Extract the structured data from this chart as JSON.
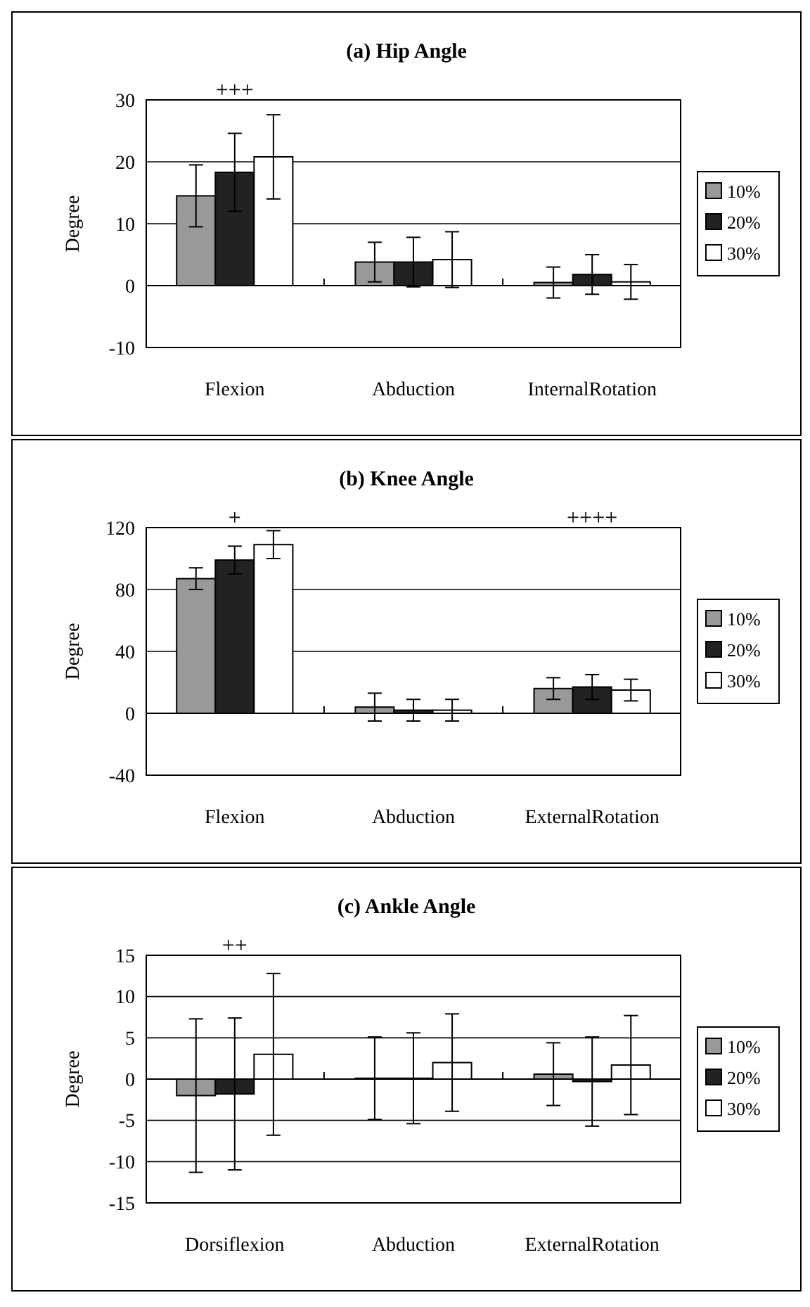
{
  "chart_data": [
    {
      "type": "bar",
      "title": "(a)   Hip Angle",
      "ylabel": "Degree",
      "categories": [
        "Flexion",
        "Abduction",
        "InternalRotation"
      ],
      "ylim": [
        -10,
        30
      ],
      "yticks": [
        -10,
        0,
        10,
        20,
        30
      ],
      "grid": "y",
      "legend": "right",
      "series": [
        {
          "name": "10%",
          "color": "#999999",
          "values": [
            14.5,
            3.8,
            0.5
          ],
          "errors": [
            5,
            3.2,
            2.5
          ]
        },
        {
          "name": "20%",
          "color": "#222222",
          "values": [
            18.3,
            3.8,
            1.8
          ],
          "errors": [
            6.3,
            4,
            3.2
          ]
        },
        {
          "name": "30%",
          "color": "#ffffff",
          "values": [
            20.8,
            4.2,
            0.6
          ],
          "errors": [
            6.8,
            4.5,
            2.8
          ]
        }
      ],
      "annotations": [
        "+++"
      ]
    },
    {
      "type": "bar",
      "title": "(b)   Knee Angle",
      "ylabel": "Degree",
      "categories": [
        "Flexion",
        "Abduction",
        "ExternalRotation"
      ],
      "ylim": [
        -40,
        120
      ],
      "yticks": [
        -40,
        0,
        40,
        80,
        120
      ],
      "grid": "y",
      "legend": "right",
      "series": [
        {
          "name": "10%",
          "color": "#999999",
          "values": [
            87,
            4,
            16
          ],
          "errors": [
            7,
            9,
            7
          ]
        },
        {
          "name": "20%",
          "color": "#222222",
          "values": [
            99,
            2,
            17
          ],
          "errors": [
            9,
            7,
            8
          ]
        },
        {
          "name": "30%",
          "color": "#ffffff",
          "values": [
            109,
            2,
            15
          ],
          "errors": [
            9,
            7,
            7
          ]
        }
      ],
      "annotations": [
        "+",
        "++++"
      ]
    },
    {
      "type": "bar",
      "title": "(c)   Ankle Angle",
      "ylabel": "Degree",
      "categories": [
        "Dorsiflexion",
        "Abduction",
        "ExternalRotation"
      ],
      "ylim": [
        -15,
        15
      ],
      "yticks": [
        -15,
        -10,
        -5,
        0,
        5,
        10,
        15
      ],
      "grid": "y",
      "legend": "right",
      "series": [
        {
          "name": "10%",
          "color": "#999999",
          "values": [
            -2,
            0.1,
            0.6
          ],
          "errors": [
            9.3,
            5,
            3.8
          ]
        },
        {
          "name": "20%",
          "color": "#222222",
          "values": [
            -1.8,
            0.1,
            -0.3
          ],
          "errors": [
            9.2,
            5.5,
            5.4
          ]
        },
        {
          "name": "30%",
          "color": "#ffffff",
          "values": [
            3,
            2,
            1.7
          ],
          "errors": [
            9.8,
            5.9,
            6
          ]
        }
      ],
      "annotations": [
        "++"
      ]
    }
  ]
}
